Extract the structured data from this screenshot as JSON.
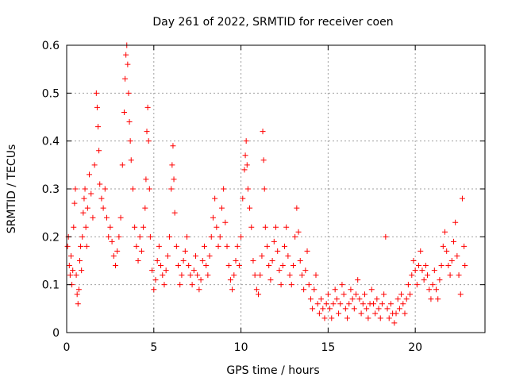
{
  "chart_data": {
    "type": "scatter",
    "title": "Day 261 of 2022, SRMTID for receiver coen",
    "xlabel": "GPS time / hours",
    "ylabel": "SRMTID / TECUs",
    "xlim": [
      0,
      24
    ],
    "ylim": [
      0,
      0.6
    ],
    "x_ticks": [
      0,
      5,
      10,
      15,
      20
    ],
    "x_tick_labels": [
      "0",
      "5",
      "10",
      "15",
      "20"
    ],
    "y_ticks": [
      0,
      0.1,
      0.2,
      0.3,
      0.4,
      0.5,
      0.6
    ],
    "y_tick_labels": [
      "0",
      "0.1",
      "0.2",
      "0.3",
      "0.4",
      "0.5",
      "0.6"
    ],
    "grid": true,
    "marker": "plus",
    "color": "#ff0000",
    "series": [
      {
        "name": "SRMTID",
        "points": [
          [
            0.05,
            0.18
          ],
          [
            0.1,
            0.2
          ],
          [
            0.15,
            0.14
          ],
          [
            0.2,
            0.12
          ],
          [
            0.25,
            0.16
          ],
          [
            0.3,
            0.1
          ],
          [
            0.35,
            0.13
          ],
          [
            0.4,
            0.22
          ],
          [
            0.45,
            0.27
          ],
          [
            0.5,
            0.3
          ],
          [
            0.55,
            0.12
          ],
          [
            0.6,
            0.08
          ],
          [
            0.65,
            0.06
          ],
          [
            0.7,
            0.09
          ],
          [
            0.75,
            0.15
          ],
          [
            0.8,
            0.18
          ],
          [
            0.85,
            0.13
          ],
          [
            0.9,
            0.2
          ],
          [
            0.95,
            0.25
          ],
          [
            1.0,
            0.28
          ],
          [
            1.05,
            0.3
          ],
          [
            1.1,
            0.22
          ],
          [
            1.15,
            0.18
          ],
          [
            1.2,
            0.26
          ],
          [
            1.3,
            0.33
          ],
          [
            1.4,
            0.29
          ],
          [
            1.5,
            0.24
          ],
          [
            1.6,
            0.35
          ],
          [
            1.7,
            0.5
          ],
          [
            1.75,
            0.47
          ],
          [
            1.8,
            0.43
          ],
          [
            1.85,
            0.38
          ],
          [
            1.9,
            0.31
          ],
          [
            2.0,
            0.28
          ],
          [
            2.1,
            0.26
          ],
          [
            2.2,
            0.3
          ],
          [
            2.3,
            0.24
          ],
          [
            2.4,
            0.2
          ],
          [
            2.5,
            0.22
          ],
          [
            2.6,
            0.19
          ],
          [
            2.7,
            0.16
          ],
          [
            2.8,
            0.14
          ],
          [
            2.9,
            0.17
          ],
          [
            3.0,
            0.2
          ],
          [
            3.1,
            0.24
          ],
          [
            3.2,
            0.35
          ],
          [
            3.3,
            0.46
          ],
          [
            3.35,
            0.53
          ],
          [
            3.4,
            0.58
          ],
          [
            3.45,
            0.6
          ],
          [
            3.5,
            0.56
          ],
          [
            3.55,
            0.5
          ],
          [
            3.6,
            0.44
          ],
          [
            3.65,
            0.4
          ],
          [
            3.7,
            0.36
          ],
          [
            3.8,
            0.3
          ],
          [
            3.9,
            0.22
          ],
          [
            4.0,
            0.18
          ],
          [
            4.1,
            0.15
          ],
          [
            4.2,
            0.2
          ],
          [
            4.3,
            0.17
          ],
          [
            4.4,
            0.22
          ],
          [
            4.5,
            0.26
          ],
          [
            4.55,
            0.32
          ],
          [
            4.6,
            0.42
          ],
          [
            4.65,
            0.47
          ],
          [
            4.7,
            0.4
          ],
          [
            4.75,
            0.3
          ],
          [
            4.8,
            0.2
          ],
          [
            4.9,
            0.13
          ],
          [
            5.0,
            0.09
          ],
          [
            5.1,
            0.11
          ],
          [
            5.2,
            0.15
          ],
          [
            5.3,
            0.18
          ],
          [
            5.4,
            0.14
          ],
          [
            5.5,
            0.12
          ],
          [
            5.6,
            0.1
          ],
          [
            5.7,
            0.13
          ],
          [
            5.8,
            0.16
          ],
          [
            5.9,
            0.2
          ],
          [
            6.0,
            0.3
          ],
          [
            6.05,
            0.35
          ],
          [
            6.1,
            0.39
          ],
          [
            6.15,
            0.32
          ],
          [
            6.2,
            0.25
          ],
          [
            6.3,
            0.18
          ],
          [
            6.4,
            0.14
          ],
          [
            6.5,
            0.1
          ],
          [
            6.6,
            0.12
          ],
          [
            6.7,
            0.15
          ],
          [
            6.8,
            0.17
          ],
          [
            6.9,
            0.2
          ],
          [
            7.0,
            0.14
          ],
          [
            7.1,
            0.12
          ],
          [
            7.2,
            0.1
          ],
          [
            7.3,
            0.13
          ],
          [
            7.4,
            0.16
          ],
          [
            7.5,
            0.12
          ],
          [
            7.6,
            0.09
          ],
          [
            7.7,
            0.11
          ],
          [
            7.8,
            0.15
          ],
          [
            7.9,
            0.18
          ],
          [
            8.0,
            0.14
          ],
          [
            8.1,
            0.12
          ],
          [
            8.2,
            0.16
          ],
          [
            8.3,
            0.2
          ],
          [
            8.4,
            0.24
          ],
          [
            8.5,
            0.28
          ],
          [
            8.6,
            0.22
          ],
          [
            8.7,
            0.18
          ],
          [
            8.8,
            0.2
          ],
          [
            8.9,
            0.26
          ],
          [
            9.0,
            0.3
          ],
          [
            9.1,
            0.23
          ],
          [
            9.2,
            0.18
          ],
          [
            9.3,
            0.14
          ],
          [
            9.4,
            0.11
          ],
          [
            9.5,
            0.09
          ],
          [
            9.6,
            0.12
          ],
          [
            9.7,
            0.15
          ],
          [
            9.8,
            0.18
          ],
          [
            9.9,
            0.14
          ],
          [
            10.0,
            0.2
          ],
          [
            10.1,
            0.28
          ],
          [
            10.2,
            0.34
          ],
          [
            10.25,
            0.37
          ],
          [
            10.3,
            0.4
          ],
          [
            10.35,
            0.35
          ],
          [
            10.4,
            0.3
          ],
          [
            10.5,
            0.26
          ],
          [
            10.6,
            0.22
          ],
          [
            10.7,
            0.15
          ],
          [
            10.8,
            0.12
          ],
          [
            10.9,
            0.09
          ],
          [
            11.0,
            0.08
          ],
          [
            11.1,
            0.12
          ],
          [
            11.2,
            0.16
          ],
          [
            11.25,
            0.42
          ],
          [
            11.3,
            0.36
          ],
          [
            11.35,
            0.3
          ],
          [
            11.4,
            0.22
          ],
          [
            11.5,
            0.18
          ],
          [
            11.6,
            0.14
          ],
          [
            11.7,
            0.11
          ],
          [
            11.8,
            0.15
          ],
          [
            11.9,
            0.19
          ],
          [
            12.0,
            0.22
          ],
          [
            12.1,
            0.17
          ],
          [
            12.2,
            0.13
          ],
          [
            12.3,
            0.1
          ],
          [
            12.4,
            0.14
          ],
          [
            12.5,
            0.18
          ],
          [
            12.6,
            0.22
          ],
          [
            12.7,
            0.16
          ],
          [
            12.8,
            0.12
          ],
          [
            12.9,
            0.1
          ],
          [
            13.0,
            0.14
          ],
          [
            13.1,
            0.2
          ],
          [
            13.2,
            0.26
          ],
          [
            13.3,
            0.21
          ],
          [
            13.4,
            0.15
          ],
          [
            13.5,
            0.12
          ],
          [
            13.6,
            0.09
          ],
          [
            13.7,
            0.13
          ],
          [
            13.8,
            0.17
          ],
          [
            13.9,
            0.1
          ],
          [
            14.0,
            0.07
          ],
          [
            14.1,
            0.05
          ],
          [
            14.2,
            0.09
          ],
          [
            14.3,
            0.12
          ],
          [
            14.4,
            0.06
          ],
          [
            14.5,
            0.04
          ],
          [
            14.6,
            0.07
          ],
          [
            14.7,
            0.05
          ],
          [
            14.8,
            0.03
          ],
          [
            14.9,
            0.06
          ],
          [
            15.0,
            0.08
          ],
          [
            15.1,
            0.05
          ],
          [
            15.2,
            0.03
          ],
          [
            15.3,
            0.06
          ],
          [
            15.4,
            0.09
          ],
          [
            15.5,
            0.07
          ],
          [
            15.6,
            0.04
          ],
          [
            15.7,
            0.06
          ],
          [
            15.8,
            0.1
          ],
          [
            15.9,
            0.08
          ],
          [
            16.0,
            0.05
          ],
          [
            16.1,
            0.03
          ],
          [
            16.2,
            0.06
          ],
          [
            16.3,
            0.09
          ],
          [
            16.4,
            0.07
          ],
          [
            16.5,
            0.05
          ],
          [
            16.6,
            0.08
          ],
          [
            16.7,
            0.11
          ],
          [
            16.8,
            0.07
          ],
          [
            16.9,
            0.04
          ],
          [
            17.0,
            0.06
          ],
          [
            17.1,
            0.08
          ],
          [
            17.2,
            0.05
          ],
          [
            17.3,
            0.03
          ],
          [
            17.4,
            0.06
          ],
          [
            17.5,
            0.09
          ],
          [
            17.6,
            0.06
          ],
          [
            17.7,
            0.04
          ],
          [
            17.8,
            0.07
          ],
          [
            17.9,
            0.05
          ],
          [
            18.0,
            0.03
          ],
          [
            18.1,
            0.06
          ],
          [
            18.2,
            0.08
          ],
          [
            18.3,
            0.2
          ],
          [
            18.4,
            0.05
          ],
          [
            18.5,
            0.03
          ],
          [
            18.6,
            0.06
          ],
          [
            18.7,
            0.04
          ],
          [
            18.8,
            0.02
          ],
          [
            18.9,
            0.04
          ],
          [
            19.0,
            0.07
          ],
          [
            19.1,
            0.05
          ],
          [
            19.2,
            0.08
          ],
          [
            19.3,
            0.06
          ],
          [
            19.4,
            0.04
          ],
          [
            19.5,
            0.07
          ],
          [
            19.6,
            0.1
          ],
          [
            19.7,
            0.08
          ],
          [
            19.8,
            0.12
          ],
          [
            19.9,
            0.15
          ],
          [
            20.0,
            0.13
          ],
          [
            20.1,
            0.1
          ],
          [
            20.2,
            0.14
          ],
          [
            20.3,
            0.17
          ],
          [
            20.4,
            0.13
          ],
          [
            20.5,
            0.11
          ],
          [
            20.6,
            0.14
          ],
          [
            20.7,
            0.12
          ],
          [
            20.8,
            0.09
          ],
          [
            20.9,
            0.07
          ],
          [
            21.0,
            0.1
          ],
          [
            21.1,
            0.13
          ],
          [
            21.2,
            0.09
          ],
          [
            21.3,
            0.07
          ],
          [
            21.4,
            0.11
          ],
          [
            21.5,
            0.14
          ],
          [
            21.6,
            0.18
          ],
          [
            21.7,
            0.21
          ],
          [
            21.8,
            0.17
          ],
          [
            21.9,
            0.14
          ],
          [
            22.0,
            0.12
          ],
          [
            22.1,
            0.15
          ],
          [
            22.2,
            0.19
          ],
          [
            22.3,
            0.23
          ],
          [
            22.4,
            0.16
          ],
          [
            22.5,
            0.12
          ],
          [
            22.6,
            0.08
          ],
          [
            22.7,
            0.28
          ],
          [
            22.8,
            0.18
          ],
          [
            22.85,
            0.14
          ]
        ]
      }
    ]
  }
}
